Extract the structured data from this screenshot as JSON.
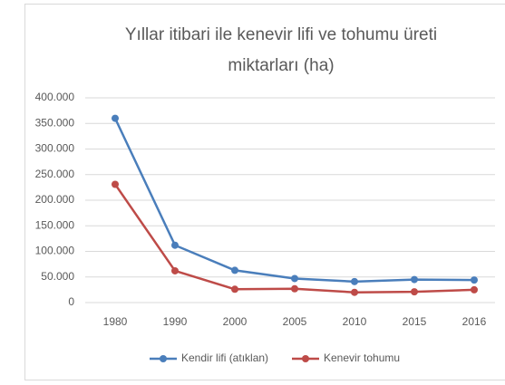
{
  "chart_data": {
    "type": "line",
    "title": "Yıllar itibari ile kenevir lifi ve tohumu üreti miktarları (ha)",
    "categories": [
      "1980",
      "1990",
      "2000",
      "2005",
      "2010",
      "2015",
      "2016"
    ],
    "series": [
      {
        "name": "Kendir lifi (atıklan)",
        "color": "#4a7ebb",
        "values": [
          360000,
          112000,
          63000,
          47000,
          41000,
          45000,
          44000
        ]
      },
      {
        "name": "Kenevir tohumu",
        "color": "#be4b48",
        "values": [
          231000,
          62000,
          26000,
          27000,
          20000,
          21000,
          25000
        ]
      }
    ],
    "ylim": [
      0,
      400000
    ],
    "yticks": [
      0,
      {
        "value": 50000,
        "label": "50.000"
      },
      {
        "value": 100000,
        "label": "100.000"
      },
      {
        "value": 150000,
        "label": "150.000"
      },
      {
        "value": 200000,
        "label": "200.000"
      },
      {
        "value": 250000,
        "label": "250.000"
      },
      {
        "value": 300000,
        "label": "300.000"
      },
      {
        "value": 350000,
        "label": "350.000"
      },
      {
        "value": 400000,
        "label": "400.000"
      }
    ],
    "grid": true,
    "legend": "bottom"
  }
}
